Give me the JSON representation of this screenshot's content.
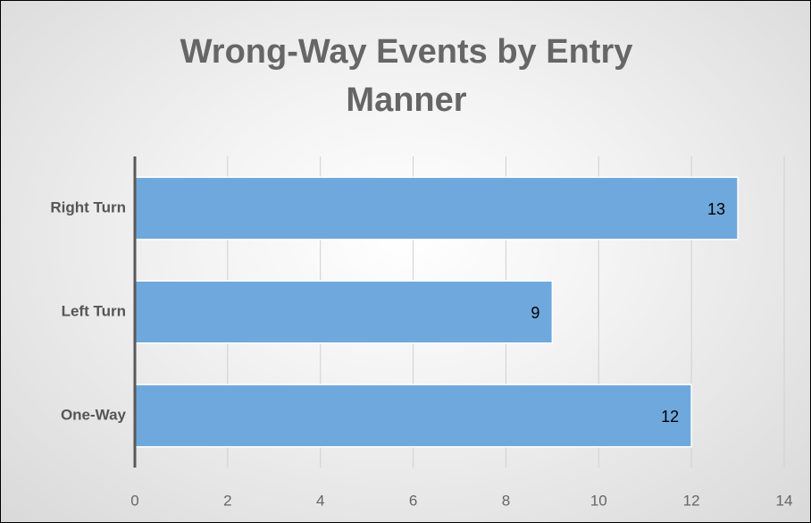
{
  "chart_data": {
    "type": "bar",
    "orientation": "horizontal",
    "title": "Wrong-Way Events by Entry Manner",
    "categories": [
      "Right Turn",
      "Left Turn",
      "One-Way"
    ],
    "values": [
      13,
      9,
      12
    ],
    "color": "#6fa8dc",
    "xlim": [
      0,
      14
    ],
    "xticks": [
      0,
      2,
      4,
      6,
      8,
      10,
      12,
      14
    ],
    "grid": true
  }
}
